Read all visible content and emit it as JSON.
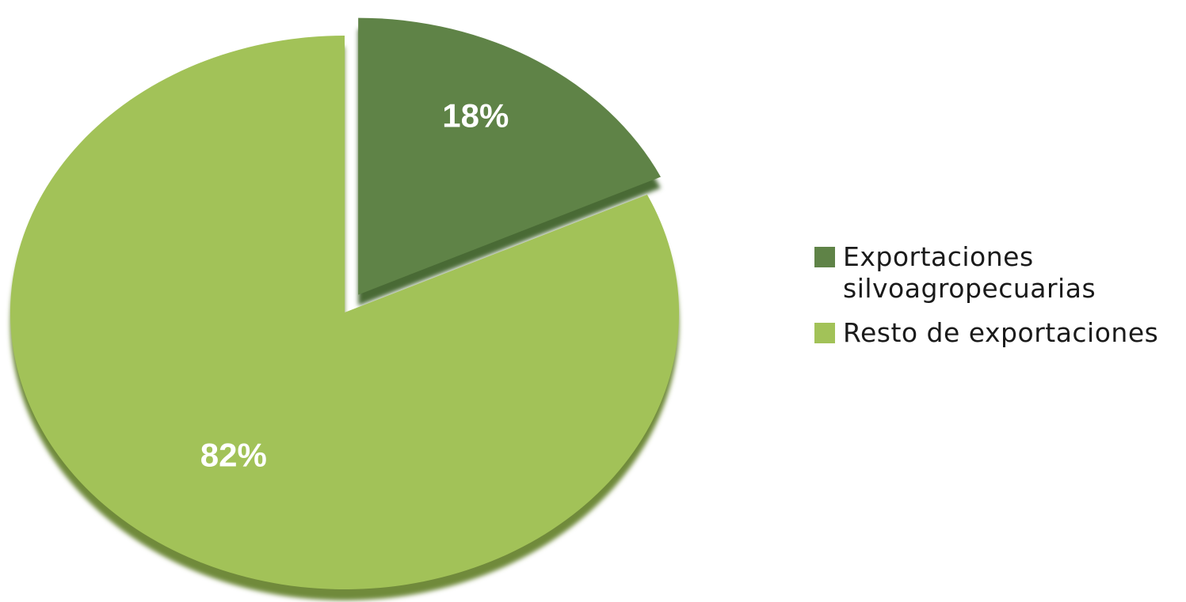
{
  "chart_data": {
    "type": "pie",
    "title": "",
    "slices": [
      {
        "name": "Exportaciones silvoagropecuarias",
        "value": 18,
        "label": "18%",
        "color": "#5f8347",
        "edge_color": "#4a6a36",
        "exploded": true
      },
      {
        "name": "Resto de exportaciones",
        "value": 82,
        "label": "82%",
        "color": "#a2c258",
        "edge_color": "#6f8a3a",
        "exploded": false
      }
    ],
    "legend": {
      "position": "right",
      "entries": [
        {
          "label": "Exportaciones silvoagropecuarias",
          "color": "#5f8347"
        },
        {
          "label": "Resto de exportaciones",
          "color": "#a2c258"
        }
      ]
    }
  }
}
